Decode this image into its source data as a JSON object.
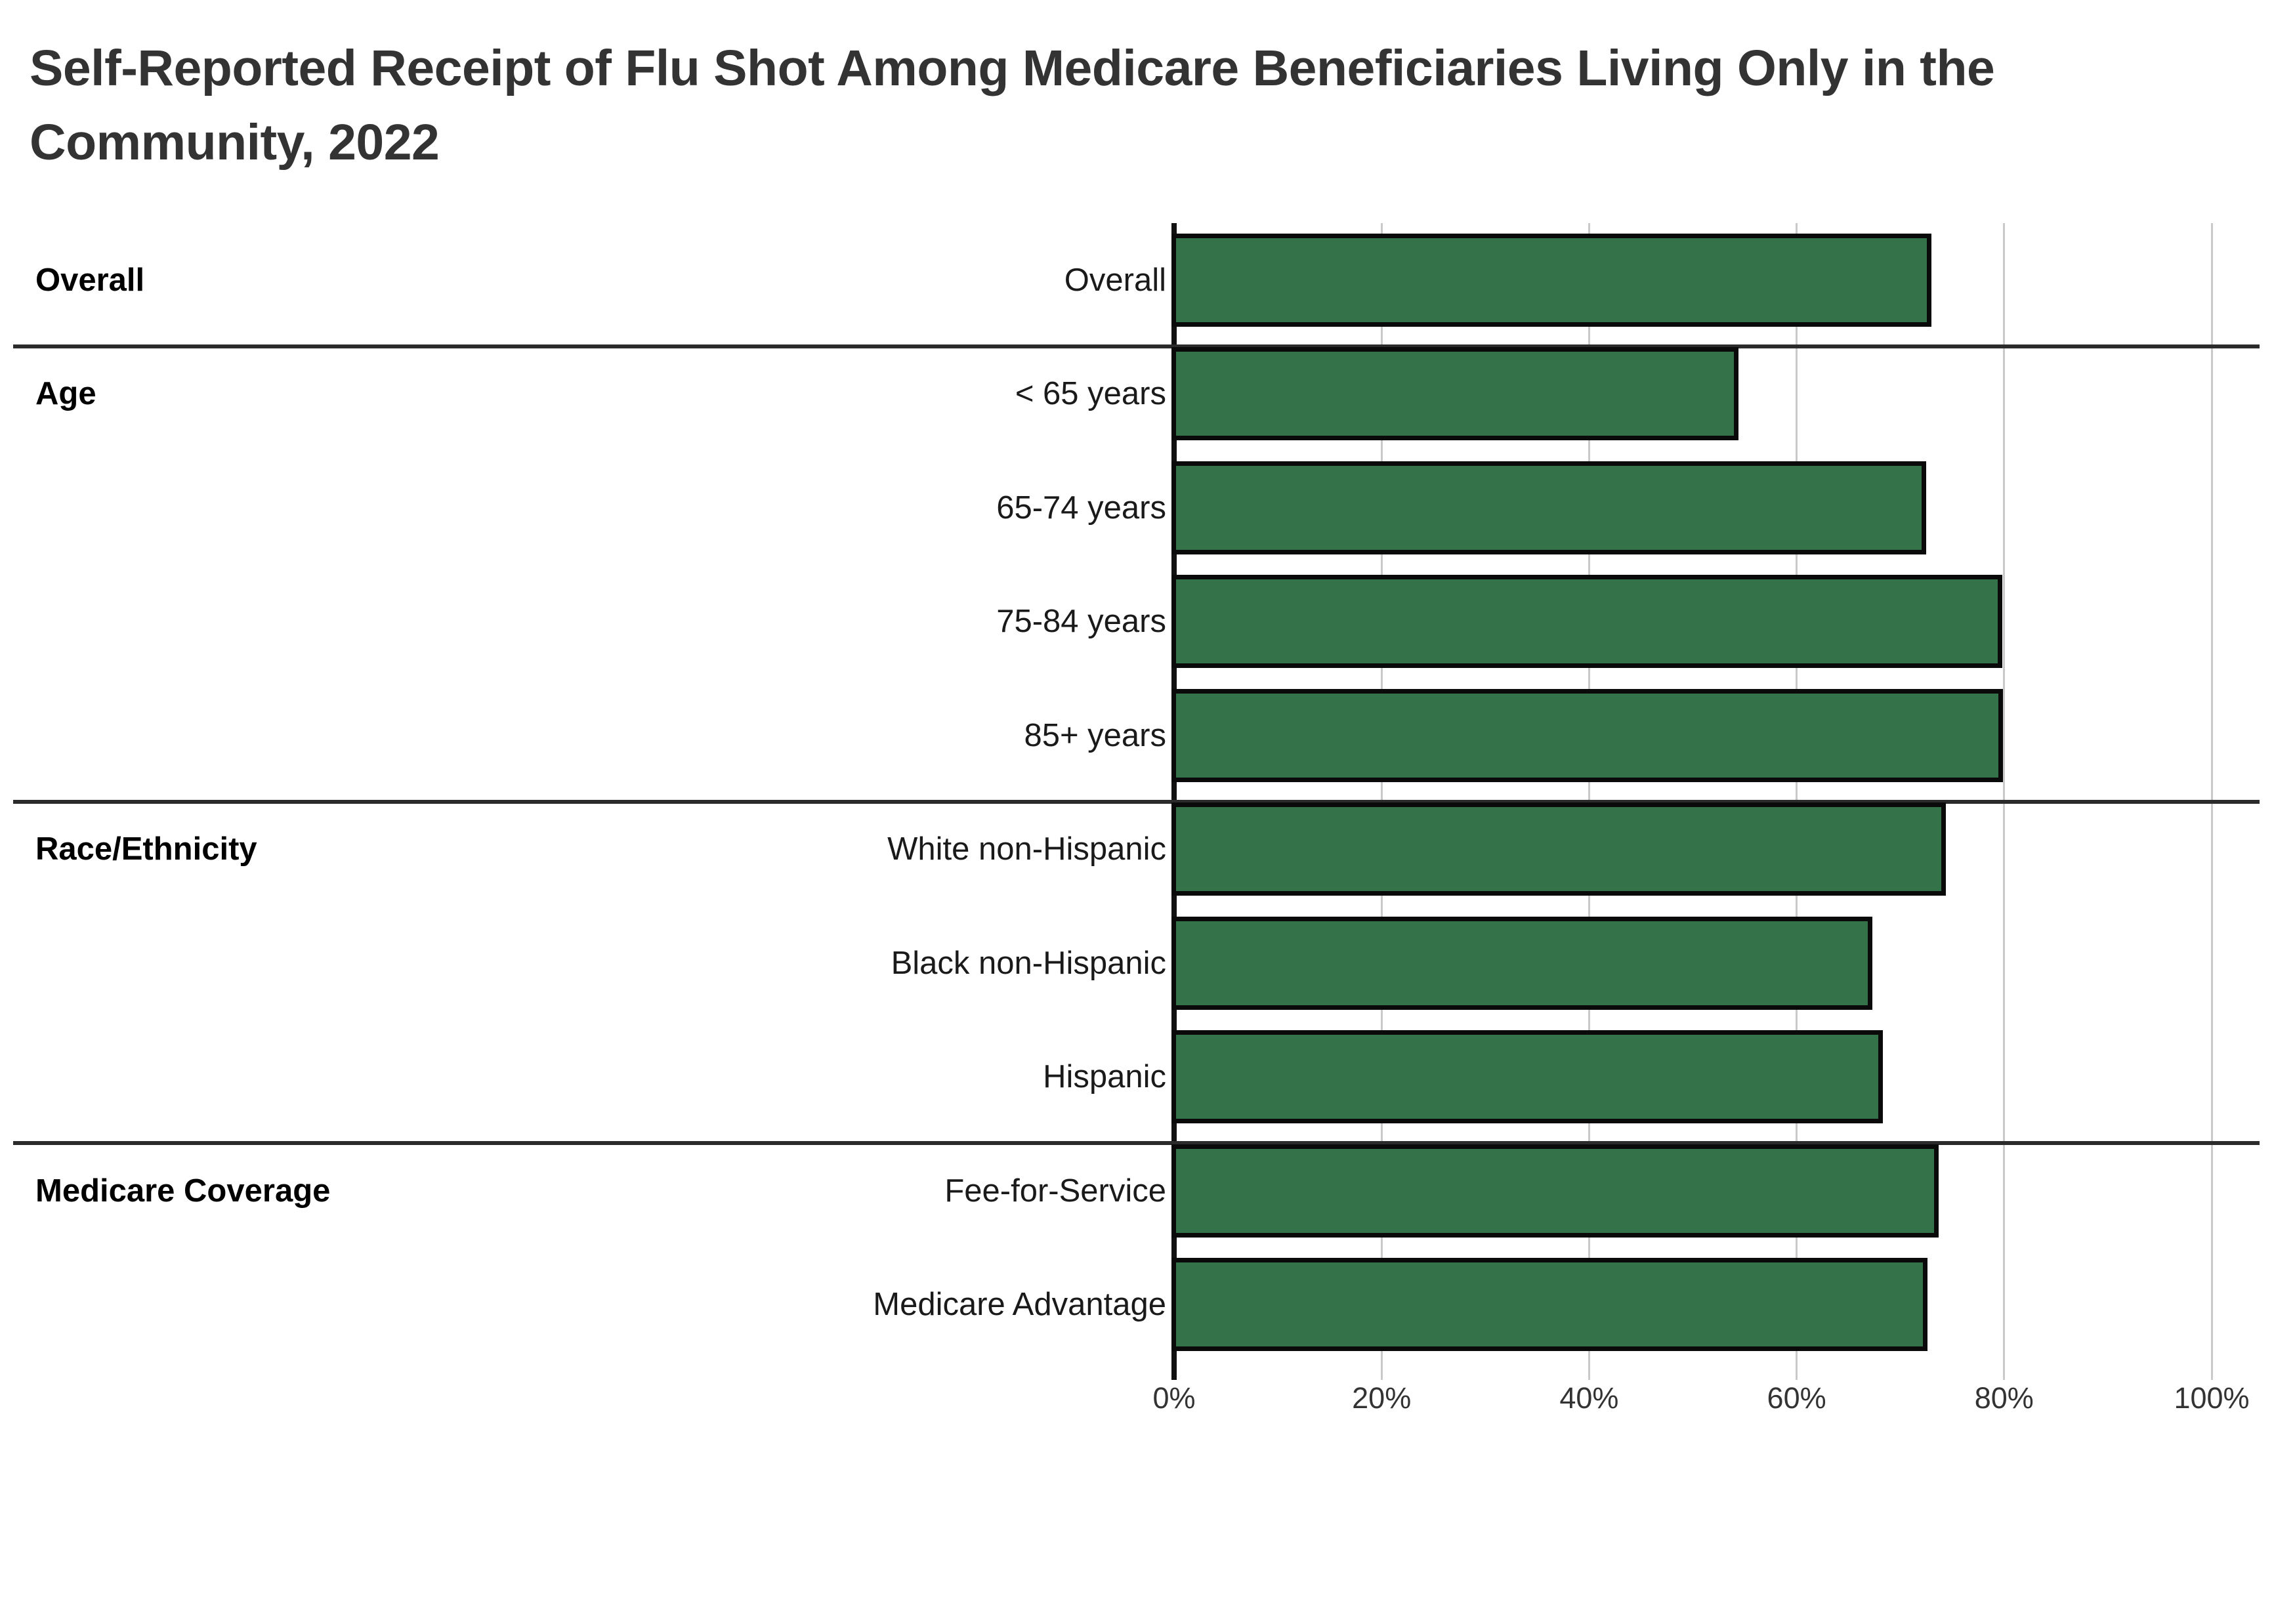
{
  "title": {
    "full": "Self-Reported Receipt of Flu Shot Among Medicare Beneficiaries Living Only in the Community, 2022",
    "line1": "Self-Reported Receipt of Flu Shot Among Medicare Beneficiaries Living Only in the",
    "line2": "Community, 2022"
  },
  "chart_data": {
    "type": "bar",
    "orientation": "horizontal",
    "title": "Self-Reported Receipt of Flu Shot Among Medicare Beneficiaries Living Only in the Community, 2022",
    "unit": "%",
    "xlim": [
      0,
      100
    ],
    "x_tick_labels": [
      "0%",
      "20%",
      "40%",
      "60%",
      "80%",
      "100%"
    ],
    "x_tick_values": [
      0,
      20,
      40,
      60,
      80,
      100
    ],
    "grid": "vertical-on",
    "legend": "none",
    "groups": [
      {
        "label": "Overall",
        "rows": [
          {
            "category": "Overall",
            "value": 73.0
          }
        ]
      },
      {
        "label": "Age",
        "rows": [
          {
            "category": "< 65 years",
            "value": 54.4
          },
          {
            "category": "65-74 years",
            "value": 72.5
          },
          {
            "category": "75-84 years",
            "value": 79.8
          },
          {
            "category": "85+ years",
            "value": 79.9
          }
        ]
      },
      {
        "label": "Race/Ethnicity",
        "rows": [
          {
            "category": "White non-Hispanic",
            "value": 74.4
          },
          {
            "category": "Black non-Hispanic",
            "value": 67.3
          },
          {
            "category": "Hispanic",
            "value": 68.3
          }
        ]
      },
      {
        "label": "Medicare Coverage",
        "rows": [
          {
            "category": "Fee-for-Service",
            "value": 73.7
          },
          {
            "category": "Medicare Advantage",
            "value": 72.6
          }
        ]
      }
    ],
    "colors": {
      "bar_fill": "#347249",
      "bar_border": "#0a0a0a",
      "gridline": "#c9c9c9",
      "axis_line": "#111111",
      "separator": "#2b2b2b",
      "title_text": "#333333",
      "label_text": "#1a1a1a",
      "tick_text": "#333333",
      "background": "#ffffff"
    }
  }
}
